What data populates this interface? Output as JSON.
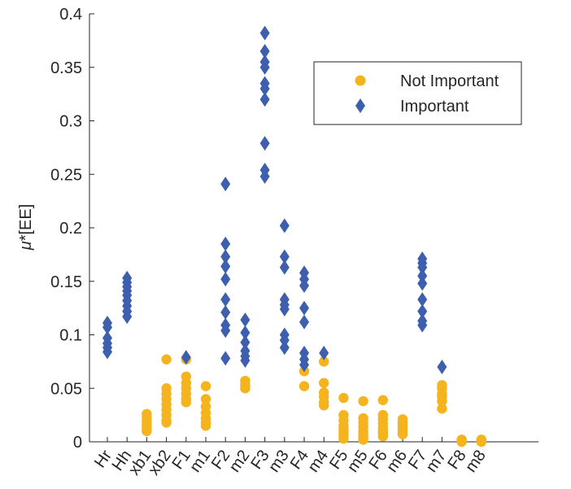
{
  "chart_data": {
    "type": "scatter",
    "title": "",
    "xlabel": "",
    "ylabel": "μ*[EE]",
    "ylabel_parts": {
      "symbol": "μ",
      "rest": "*[EE]"
    },
    "ylim": [
      0,
      0.4
    ],
    "yticks": [
      0,
      0.05,
      0.1,
      0.15,
      0.2,
      0.25,
      0.3,
      0.35,
      0.4
    ],
    "ytick_labels": [
      "0",
      "0.05",
      "0.1",
      "0.15",
      "0.2",
      "0.25",
      "0.3",
      "0.35",
      "0.4"
    ],
    "categories": [
      "Hr",
      "Hh",
      "xb1",
      "xb2",
      "F1",
      "m1",
      "F2",
      "m2",
      "F3",
      "m3",
      "F4",
      "m4",
      "F5",
      "m5",
      "F6",
      "m6",
      "F7",
      "m7",
      "F8",
      "m8"
    ],
    "grid": false,
    "legend_position": "top-right",
    "series": [
      {
        "name": "Not Important",
        "marker": "circle",
        "color": "#F5B41E",
        "points": {
          "xb1": [
            0.026,
            0.023,
            0.02,
            0.017,
            0.015,
            0.012,
            0.01
          ],
          "xb2": [
            0.077,
            0.05,
            0.045,
            0.04,
            0.035,
            0.03,
            0.025,
            0.02,
            0.018
          ],
          "F1": [
            0.077,
            0.061,
            0.055,
            0.05,
            0.045,
            0.04,
            0.037
          ],
          "m1": [
            0.052,
            0.04,
            0.033,
            0.027,
            0.022,
            0.018,
            0.015
          ],
          "m2": [
            0.057,
            0.053,
            0.05
          ],
          "F4": [
            0.066,
            0.052
          ],
          "m4": [
            0.075,
            0.055,
            0.046,
            0.042,
            0.037,
            0.034
          ],
          "F5": [
            0.041,
            0.025,
            0.02,
            0.015,
            0.012,
            0.009,
            0.006,
            0.003
          ],
          "m5": [
            0.038,
            0.022,
            0.018,
            0.014,
            0.01,
            0.007,
            0.004,
            0.002
          ],
          "F6": [
            0.039,
            0.025,
            0.021,
            0.017,
            0.013,
            0.01,
            0.008,
            0.005
          ],
          "m6": [
            0.021,
            0.018,
            0.015,
            0.012,
            0.009,
            0.007
          ],
          "m7": [
            0.053,
            0.05,
            0.045,
            0.042,
            0.038,
            0.031
          ],
          "F8": [
            0.002,
            0.001,
            0.0
          ],
          "m8": [
            0.002,
            0.001,
            0.0
          ]
        }
      },
      {
        "name": "Important",
        "marker": "diamond",
        "color": "#3E5FAD",
        "points": {
          "Hr": [
            0.111,
            0.107,
            0.097,
            0.092,
            0.088,
            0.084
          ],
          "Hh": [
            0.153,
            0.149,
            0.145,
            0.141,
            0.137,
            0.132,
            0.127,
            0.122,
            0.117
          ],
          "F1": [
            0.079
          ],
          "F2": [
            0.241,
            0.185,
            0.173,
            0.164,
            0.152,
            0.133,
            0.121,
            0.109,
            0.104,
            0.078
          ],
          "m2": [
            0.114,
            0.102,
            0.093,
            0.085,
            0.08,
            0.076
          ],
          "F3": [
            0.382,
            0.365,
            0.355,
            0.35,
            0.335,
            0.33,
            0.32,
            0.279,
            0.254,
            0.248
          ],
          "m3": [
            0.202,
            0.173,
            0.163,
            0.133,
            0.128,
            0.124,
            0.1,
            0.095,
            0.088
          ],
          "F4": [
            0.158,
            0.152,
            0.146,
            0.125,
            0.112,
            0.083,
            0.077,
            0.072
          ],
          "m4": [
            0.083
          ],
          "F7": [
            0.171,
            0.167,
            0.163,
            0.155,
            0.148,
            0.133,
            0.122,
            0.113,
            0.109
          ],
          "m7": [
            0.07
          ]
        }
      }
    ]
  }
}
